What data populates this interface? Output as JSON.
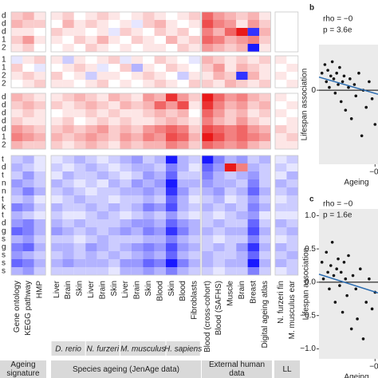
{
  "heatmap": {
    "row_labels": [
      [
        "d",
        "d",
        "d",
        "1",
        "2"
      ],
      [
        "1",
        "1",
        "2",
        "2"
      ],
      [
        "d",
        "d",
        "d",
        "d",
        "d",
        "1",
        "2"
      ],
      [
        "t",
        "d",
        "t",
        "n",
        "n",
        "t",
        "k",
        "t",
        "d",
        "g",
        "s",
        "g",
        "s",
        "s",
        "s"
      ]
    ],
    "column_groups": [
      {
        "title": "Ageing signature",
        "labels": [
          "Gene ontology",
          "KEGG pathway",
          "HMP"
        ]
      },
      {
        "title": "Species ageing (JenAge data)",
        "subgroups": [
          {
            "name": "D. rerio",
            "labels": [
              "Liver",
              "Brain",
              "Skin"
            ]
          },
          {
            "name": "N. furzeri",
            "labels": [
              "Liver",
              "Brain",
              "Skin"
            ]
          },
          {
            "name": "M. musculus",
            "labels": [
              "Liver",
              "Brain",
              "Skin",
              "Blood"
            ]
          },
          {
            "name": "H. sapiens",
            "labels": [
              "Skin",
              "Blood",
              "Fibroblasts"
            ]
          }
        ]
      },
      {
        "title": "External human data",
        "labels": [
          "Blood (cross-cohort)",
          "Blood (SAFHS)",
          "Muscle",
          "Brain",
          "Breast",
          "Digital ageing atlas"
        ]
      },
      {
        "title": "LL",
        "labels": [
          "N. furzeri fin",
          "M. musculus ear"
        ]
      }
    ],
    "row_groups": [
      [
        [
          0.2,
          0.3,
          0.1,
          0.1,
          0.2,
          0,
          0.1,
          0.2,
          0.1,
          0,
          0.1,
          0.2,
          0.1,
          0,
          0.1,
          0.2,
          0.6,
          0.4,
          0.3,
          0.2,
          0.3,
          0.1,
          null,
          null
        ],
        [
          0.3,
          0.2,
          0.2,
          0,
          0.3,
          0.1,
          0.2,
          0.1,
          0,
          0.1,
          -0.1,
          0.2,
          0.3,
          0.1,
          0,
          0.1,
          0.7,
          0.5,
          0.4,
          0.1,
          0.4,
          0.2,
          null,
          null
        ],
        [
          0.1,
          0.1,
          0,
          0.2,
          0.1,
          0.1,
          0,
          0.1,
          -0.1,
          0.2,
          0.1,
          0,
          0.2,
          0.1,
          0.2,
          0,
          0.5,
          0.3,
          0.6,
          0.9,
          -0.8,
          0.3,
          null,
          null
        ],
        [
          0.2,
          0.4,
          0.1,
          0.1,
          0,
          0.2,
          0.1,
          0.3,
          0.1,
          0,
          0.2,
          0.1,
          0,
          0.3,
          0.1,
          0.2,
          0.6,
          0.5,
          0.3,
          0.4,
          0.5,
          0.2,
          null,
          null
        ],
        [
          0.1,
          0.2,
          0,
          0,
          0.1,
          0,
          0.2,
          0.1,
          0,
          0.1,
          0,
          0.1,
          0.1,
          0,
          0.2,
          0.1,
          0.4,
          0.3,
          0.2,
          0.3,
          -0.9,
          0.1,
          null,
          null
        ]
      ],
      [
        [
          -0.1,
          0.1,
          0.2,
          0.1,
          -0.2,
          0.1,
          0,
          0.1,
          0.2,
          -0.1,
          0.1,
          0,
          0.2,
          0.1,
          0,
          -0.1,
          0.3,
          0.2,
          0.1,
          0.2,
          0.1,
          0.2,
          0.1,
          0
        ],
        [
          0.2,
          0,
          -0.1,
          0,
          0.1,
          0.2,
          0.1,
          -0.1,
          0,
          0.2,
          -0.3,
          0.1,
          0,
          0.2,
          0.1,
          0,
          0.2,
          0.4,
          0.1,
          0.3,
          0.2,
          0.1,
          0,
          0.1
        ],
        [
          0.1,
          0.2,
          0.1,
          0.2,
          0,
          0.1,
          -0.2,
          0.1,
          0.1,
          0,
          0.1,
          0.2,
          0.1,
          0,
          -0.2,
          0.1,
          0.1,
          0.3,
          0.2,
          -0.8,
          0.3,
          0.1,
          0.1,
          0
        ],
        [
          0,
          0.1,
          0.2,
          0.1,
          0.1,
          0,
          0.1,
          0.2,
          0,
          0.1,
          0,
          0.1,
          0.2,
          0.1,
          0,
          0.2,
          0.2,
          0.1,
          0.3,
          0.2,
          0.1,
          0.2,
          0,
          0.1
        ]
      ],
      [
        [
          0.3,
          0.2,
          0.1,
          0.1,
          0.2,
          0.3,
          0.2,
          0.1,
          0.3,
          0.2,
          0.1,
          0.4,
          0.3,
          0.8,
          0.4,
          0.2,
          0.9,
          0.6,
          0.4,
          0.5,
          0.3,
          0.2,
          0.1,
          0
        ],
        [
          0.2,
          0.3,
          0.2,
          0.2,
          0.1,
          0.2,
          0.3,
          0.2,
          0.1,
          0.3,
          0.2,
          0.3,
          0.6,
          0.4,
          0.7,
          0.1,
          0.8,
          0.5,
          0.3,
          0.4,
          0.2,
          0.3,
          0,
          0.1
        ],
        [
          0.1,
          0.2,
          0.1,
          0,
          0.1,
          0.1,
          0.2,
          0.1,
          0.2,
          0.1,
          0.1,
          0.2,
          0.3,
          0.2,
          0.3,
          0,
          0.6,
          0.4,
          0.2,
          0.3,
          0.1,
          0.2,
          0.1,
          0
        ],
        [
          0.2,
          0.1,
          0.1,
          0.1,
          0.2,
          0,
          0.1,
          0.2,
          0.1,
          0.2,
          0.1,
          0.1,
          0.2,
          0.3,
          0.2,
          0.1,
          0.5,
          0.3,
          0.2,
          0.4,
          0.2,
          0.1,
          0,
          0.1
        ],
        [
          0.4,
          0.3,
          0.2,
          0.2,
          0.3,
          0.2,
          0.3,
          0.4,
          0.2,
          0.3,
          0.2,
          0.4,
          0.5,
          0.6,
          0.5,
          0.2,
          0.7,
          0.6,
          0.5,
          0.6,
          0.4,
          0.3,
          0.2,
          0.1
        ],
        [
          0.5,
          0.4,
          0.3,
          0.3,
          0.2,
          0.3,
          0.4,
          0.3,
          0.2,
          0.4,
          0.3,
          0.5,
          0.4,
          0.7,
          0.6,
          0.3,
          0.9,
          0.7,
          0.5,
          0.6,
          0.5,
          0.4,
          0.1,
          0.2
        ],
        [
          0.3,
          0.2,
          0.2,
          0.2,
          0.1,
          0.2,
          0.3,
          0.2,
          0.1,
          0.3,
          0.2,
          0.3,
          0.3,
          0.5,
          0.4,
          0.2,
          0.6,
          0.5,
          0.4,
          0.5,
          0.3,
          0.2,
          0.1,
          0.1
        ]
      ],
      [
        [
          -0.2,
          -0.3,
          -0.1,
          -0.1,
          -0.2,
          -0.3,
          -0.2,
          -0.1,
          -0.2,
          -0.3,
          -0.4,
          -0.2,
          -0.3,
          -0.9,
          -0.3,
          -0.2,
          -0.9,
          -0.5,
          -0.3,
          -0.4,
          -0.2,
          -0.3,
          -0.1,
          -0.2
        ],
        [
          -0.3,
          -0.2,
          -0.1,
          -0.2,
          -0.1,
          -0.2,
          -0.3,
          -0.2,
          -0.1,
          -0.2,
          -0.3,
          -0.3,
          -0.2,
          -0.5,
          -0.3,
          -0.1,
          -0.6,
          -0.4,
          0.9,
          0.5,
          -0.3,
          -0.2,
          -0.2,
          -0.1
        ],
        [
          -0.2,
          -0.4,
          -0.2,
          -0.1,
          -0.3,
          -0.2,
          -0.2,
          -0.3,
          -0.2,
          -0.1,
          -0.2,
          -0.4,
          -0.3,
          -0.6,
          -0.2,
          -0.2,
          -0.5,
          -0.3,
          -0.2,
          -0.3,
          -0.4,
          -0.2,
          -0.1,
          -0.3
        ],
        [
          -0.4,
          -0.3,
          -0.2,
          -0.3,
          -0.2,
          -0.1,
          -0.2,
          -0.1,
          -0.3,
          -0.2,
          -0.4,
          -0.3,
          -0.4,
          -0.9,
          -0.3,
          -0.3,
          -0.4,
          -0.3,
          -0.3,
          -0.2,
          -0.5,
          -0.2,
          -0.3,
          -0.2
        ],
        [
          -0.3,
          -0.5,
          -0.3,
          -0.2,
          -0.3,
          -0.2,
          -0.1,
          -0.2,
          -0.2,
          -0.3,
          -0.3,
          -0.4,
          -0.3,
          -0.8,
          -0.4,
          -0.2,
          -0.3,
          -0.4,
          -0.2,
          -0.3,
          -0.6,
          -0.3,
          -0.2,
          -0.3
        ],
        [
          -0.2,
          -0.3,
          -0.1,
          -0.1,
          -0.2,
          -0.3,
          -0.2,
          -0.2,
          -0.1,
          -0.2,
          -0.2,
          -0.3,
          -0.2,
          -0.6,
          -0.3,
          -0.1,
          -0.2,
          -0.3,
          -0.1,
          -0.2,
          -0.4,
          -0.2,
          -0.1,
          -0.2
        ],
        [
          -0.5,
          -0.4,
          -0.2,
          -0.3,
          -0.2,
          -0.2,
          -0.3,
          -0.2,
          -0.3,
          -0.2,
          -0.3,
          -0.5,
          -0.4,
          -0.7,
          -0.3,
          -0.2,
          -0.3,
          -0.2,
          -0.3,
          -0.2,
          -0.5,
          -0.3,
          -0.2,
          -0.2
        ],
        [
          -0.3,
          -0.2,
          -0.1,
          -0.2,
          -0.1,
          -0.1,
          -0.2,
          -0.3,
          -0.2,
          -0.1,
          -0.2,
          -0.3,
          -0.2,
          -0.4,
          -0.2,
          -0.1,
          -0.2,
          -0.1,
          -0.2,
          -0.3,
          -0.4,
          -0.1,
          -0.1,
          -0.1
        ],
        [
          -0.4,
          -0.5,
          -0.3,
          -0.3,
          -0.2,
          -0.3,
          -0.2,
          -0.2,
          -0.2,
          -0.3,
          -0.4,
          -0.4,
          -0.3,
          -0.6,
          -0.4,
          -0.3,
          -0.2,
          -0.3,
          -0.2,
          -0.2,
          -0.6,
          -0.2,
          -0.3,
          -0.2
        ],
        [
          -0.6,
          -0.5,
          -0.3,
          -0.4,
          -0.3,
          -0.2,
          -0.3,
          -0.2,
          -0.3,
          -0.4,
          -0.3,
          -0.5,
          -0.4,
          -0.8,
          -0.5,
          -0.3,
          -0.3,
          -0.2,
          -0.3,
          -0.3,
          -0.7,
          -0.3,
          -0.2,
          -0.3
        ],
        [
          -0.3,
          -0.4,
          -0.2,
          -0.2,
          -0.2,
          -0.1,
          -0.2,
          -0.3,
          -0.2,
          -0.2,
          -0.2,
          -0.3,
          -0.3,
          -0.5,
          -0.3,
          -0.2,
          -0.2,
          -0.1,
          -0.2,
          -0.2,
          -0.5,
          -0.2,
          -0.1,
          -0.2
        ],
        [
          -0.5,
          -0.6,
          -0.3,
          -0.3,
          -0.3,
          -0.2,
          -0.4,
          -0.3,
          -0.2,
          -0.3,
          -0.4,
          -0.5,
          -0.4,
          -0.7,
          -0.4,
          -0.3,
          -0.2,
          -0.3,
          -0.2,
          -0.4,
          -0.8,
          -0.3,
          -0.3,
          -0.2
        ],
        [
          -0.4,
          -0.3,
          -0.2,
          -0.2,
          -0.3,
          -0.2,
          -0.3,
          -0.2,
          -0.3,
          -0.2,
          -0.3,
          -0.4,
          -0.3,
          -0.6,
          -0.3,
          -0.2,
          -0.3,
          -0.2,
          -0.2,
          -0.3,
          -0.6,
          -0.2,
          -0.2,
          -0.3
        ],
        [
          -0.6,
          -0.5,
          -0.3,
          -0.3,
          -0.4,
          -0.3,
          -0.3,
          -0.3,
          -0.2,
          -0.4,
          -0.4,
          -0.6,
          -0.5,
          -0.9,
          -0.5,
          -0.3,
          -0.3,
          -0.2,
          -0.3,
          -0.3,
          -0.9,
          -0.3,
          -0.3,
          -0.2
        ],
        [
          -0.3,
          -0.4,
          -0.2,
          -0.2,
          -0.2,
          -0.2,
          -0.2,
          -0.2,
          -0.1,
          -0.3,
          -0.3,
          -0.4,
          -0.3,
          -0.5,
          -0.3,
          -0.2,
          -0.2,
          -0.1,
          -0.2,
          -0.2,
          -0.5,
          -0.2,
          -0.1,
          -0.2
        ]
      ]
    ]
  },
  "panels": [
    {
      "letter": "b",
      "rho": "rho = −0",
      "p": "p = 3.6e",
      "ylabel": "Lifespan association",
      "xlabel": "Ageing",
      "ylim": [
        -1.3,
        0.8
      ],
      "yticks": [
        0
      ],
      "xlim": [
        -0.5,
        -0.1
      ],
      "xticks": [
        {
          "value": -0.12,
          "label": "−0."
        }
      ],
      "points": {
        "x": [
          -0.48,
          -0.46,
          -0.45,
          -0.44,
          -0.43,
          -0.42,
          -0.41,
          -0.4,
          -0.39,
          -0.38,
          -0.37,
          -0.36,
          -0.35,
          -0.34,
          -0.33,
          -0.32,
          -0.3,
          -0.29,
          -0.28,
          -0.26,
          -0.25,
          -0.23,
          -0.21,
          -0.2,
          -0.18,
          -0.16,
          -0.14,
          -0.12
        ],
        "y": [
          0.3,
          0.45,
          0.15,
          0.35,
          0.05,
          0.25,
          0.5,
          0.2,
          -0.05,
          0.3,
          0.1,
          0.4,
          -0.2,
          0.15,
          0.25,
          -0.35,
          0.05,
          0.2,
          -0.5,
          0.1,
          -0.1,
          0.3,
          -0.8,
          0,
          -0.3,
          0.15,
          -0.15,
          -0.6
        ]
      },
      "fit": {
        "x": [
          -0.5,
          -0.1
        ],
        "y": [
          0.23,
          -0.07
        ]
      }
    },
    {
      "letter": "c",
      "rho": "rho = −0",
      "p": "p = 1.6e",
      "ylabel": "Lifespan association",
      "xlabel": "Ageing",
      "ylim": [
        -1.15,
        1.1
      ],
      "yticks": [
        {
          "value": 1,
          "label": "1.0"
        },
        0.5,
        {
          "value": 0,
          "label": "0.0"
        },
        {
          "value": -0.5,
          "label": "−0.5"
        },
        {
          "value": -1,
          "label": "−1.0"
        }
      ],
      "xlim": [
        -0.5,
        -0.1
      ],
      "xticks": [
        {
          "value": -0.12,
          "label": "−0."
        }
      ],
      "points": {
        "x": [
          -0.48,
          -0.47,
          -0.45,
          -0.44,
          -0.43,
          -0.42,
          -0.41,
          -0.4,
          -0.39,
          -0.38,
          -0.37,
          -0.36,
          -0.35,
          -0.34,
          -0.33,
          -0.32,
          -0.31,
          -0.3,
          -0.28,
          -0.27,
          -0.25,
          -0.24,
          -0.22,
          -0.2,
          -0.18,
          -0.16,
          -0.14,
          -0.12
        ],
        "y": [
          0.3,
          0.05,
          0.45,
          0.15,
          -0.1,
          0.25,
          0.6,
          0.1,
          -0.3,
          0.2,
          0.35,
          -0.05,
          0.15,
          -0.45,
          0.3,
          0.05,
          -0.2,
          0.4,
          -0.7,
          0.1,
          -0.1,
          -0.55,
          0.2,
          -0.85,
          -0.3,
          0.05,
          -0.4,
          -0.15
        ]
      },
      "fit": {
        "x": [
          -0.5,
          -0.1
        ],
        "y": [
          0.12,
          -0.16
        ]
      }
    }
  ]
}
